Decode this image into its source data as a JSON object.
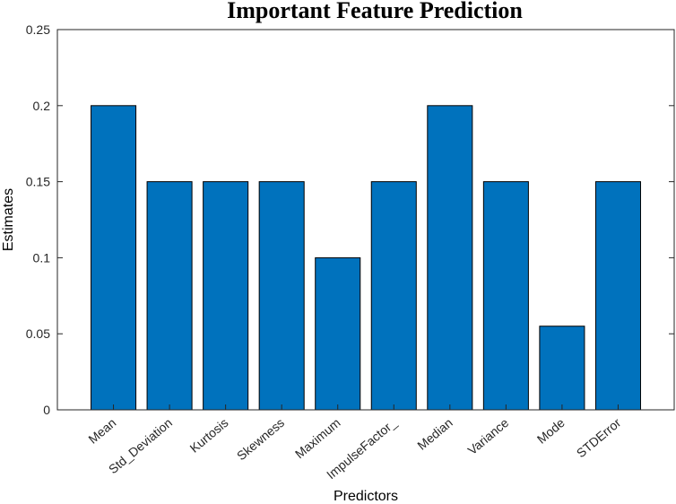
{
  "chart_data": {
    "type": "bar",
    "title": "Important Feature Prediction",
    "xlabel": "Predictors",
    "ylabel": "Estimates",
    "categories": [
      "Mean",
      "Std_Deviation",
      "Kurtosis",
      "Skewness",
      "Maximum",
      "ImpulseFactor_",
      "Median",
      "Variance",
      "Mode",
      "STDError"
    ],
    "values": [
      0.2,
      0.15,
      0.15,
      0.15,
      0.1,
      0.15,
      0.2,
      0.15,
      0.055,
      0.15
    ],
    "ylim": [
      0,
      0.25
    ],
    "yticks": [
      "0",
      "0.05",
      "0.1",
      "0.15",
      "0.2",
      "0.25"
    ],
    "grid": false,
    "bar_color": "#0072BD",
    "edge_color": "#000000",
    "box": true
  }
}
